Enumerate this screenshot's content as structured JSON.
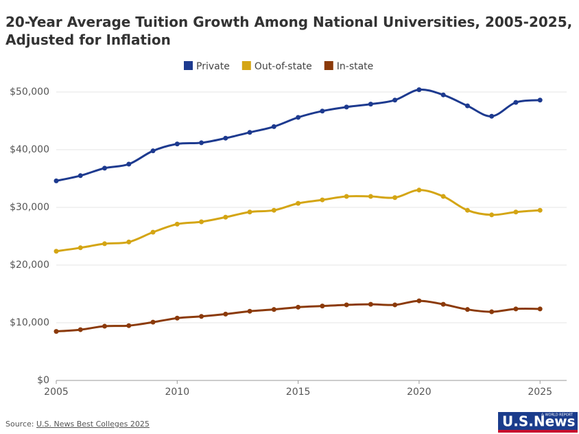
{
  "chart_data": {
    "type": "line",
    "title": [
      "20-Year Average Tuition Growth Among National Universities, 2005-2025,",
      "Adjusted for Inflation"
    ],
    "x": [
      2005,
      2006,
      2007,
      2008,
      2009,
      2010,
      2011,
      2012,
      2013,
      2014,
      2015,
      2016,
      2017,
      2018,
      2019,
      2020,
      2021,
      2022,
      2023,
      2024,
      2025
    ],
    "series": [
      {
        "name": "Private",
        "color": "#1d3a8f",
        "values": [
          34600,
          35500,
          36800,
          37500,
          39800,
          41000,
          41200,
          42000,
          43000,
          44000,
          45600,
          46700,
          47400,
          47900,
          48600,
          50400,
          49500,
          47600,
          45800,
          48200,
          48600
        ]
      },
      {
        "name": "Out-of-state",
        "color": "#d4a514",
        "values": [
          22400,
          23000,
          23700,
          24000,
          25700,
          27100,
          27500,
          28300,
          29200,
          29500,
          30700,
          31300,
          31900,
          31900,
          31700,
          33000,
          31900,
          29500,
          28700,
          29200,
          29500
        ]
      },
      {
        "name": "In-state",
        "color": "#8b3a0a",
        "values": [
          8500,
          8800,
          9400,
          9500,
          10100,
          10800,
          11100,
          11500,
          12000,
          12300,
          12700,
          12900,
          13100,
          13200,
          13100,
          13800,
          13200,
          12300,
          11900,
          12400,
          12400
        ]
      }
    ],
    "xlim": [
      2005,
      2026.1
    ],
    "xticks": [
      2005,
      2010,
      2015,
      2020,
      2025
    ],
    "ylim": [
      0,
      50000
    ],
    "yticks": [
      {
        "value": 0,
        "label": "$0"
      },
      {
        "value": 10000,
        "label": "$10,000"
      },
      {
        "value": 20000,
        "label": "$20,000"
      },
      {
        "value": 30000,
        "label": "$30,000"
      },
      {
        "value": 40000,
        "label": "$40,000"
      },
      {
        "value": 50000,
        "label": "$50,000"
      }
    ],
    "grid": true,
    "legend": "top"
  },
  "source": {
    "label": "Source:",
    "link": "U.S. News Best Colleges 2025"
  },
  "logo": {
    "text": "U.S.News",
    "tagline": "& WORLD REPORT"
  }
}
